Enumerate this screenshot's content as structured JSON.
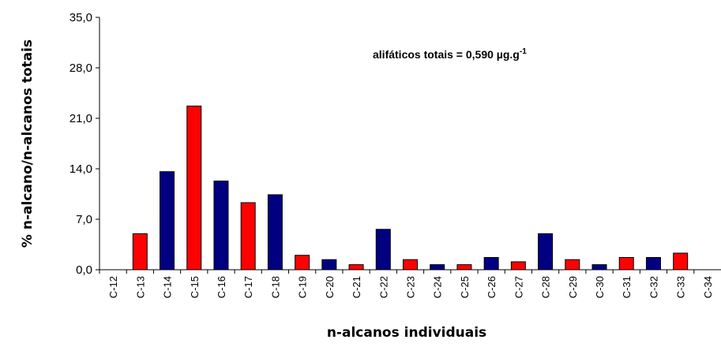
{
  "chart_data": {
    "type": "bar",
    "xlabel": "n-alcanos individuais",
    "ylabel": "% n-alcano/n-alcanos totais",
    "annotation": {
      "text": "alifáticos totais = 0,590 µg.g",
      "superscript": "-1"
    },
    "categories": [
      "C-12",
      "C-13",
      "C-14",
      "C-15",
      "C-16",
      "C-17",
      "C-18",
      "C-19",
      "C-20",
      "C-21",
      "C-22",
      "C-23",
      "C-24",
      "C-25",
      "C-26",
      "C-27",
      "C-28",
      "C-29",
      "C-30",
      "C-31",
      "C-32",
      "C-33",
      "C-34"
    ],
    "values": [
      0,
      5.0,
      13.6,
      22.7,
      12.3,
      9.3,
      10.4,
      2.0,
      1.4,
      0.7,
      5.6,
      1.4,
      0.7,
      0.7,
      1.7,
      1.1,
      5.0,
      1.4,
      0.7,
      1.7,
      1.7,
      2.3,
      0
    ],
    "colors": [
      "#ff0000",
      "#ff0000",
      "#000080",
      "#ff0000",
      "#000080",
      "#ff0000",
      "#000080",
      "#ff0000",
      "#000080",
      "#ff0000",
      "#000080",
      "#ff0000",
      "#000080",
      "#ff0000",
      "#000080",
      "#ff0000",
      "#000080",
      "#ff0000",
      "#000080",
      "#ff0000",
      "#000080",
      "#ff0000",
      "#000080"
    ],
    "ylim": [
      0,
      35
    ],
    "yticks": [
      {
        "value": 0,
        "label": "0,0"
      },
      {
        "value": 7,
        "label": "7,0"
      },
      {
        "value": 14,
        "label": "14,0"
      },
      {
        "value": 21,
        "label": "21,0"
      },
      {
        "value": 28,
        "label": "28,0"
      },
      {
        "value": 35,
        "label": "35,0"
      }
    ]
  }
}
